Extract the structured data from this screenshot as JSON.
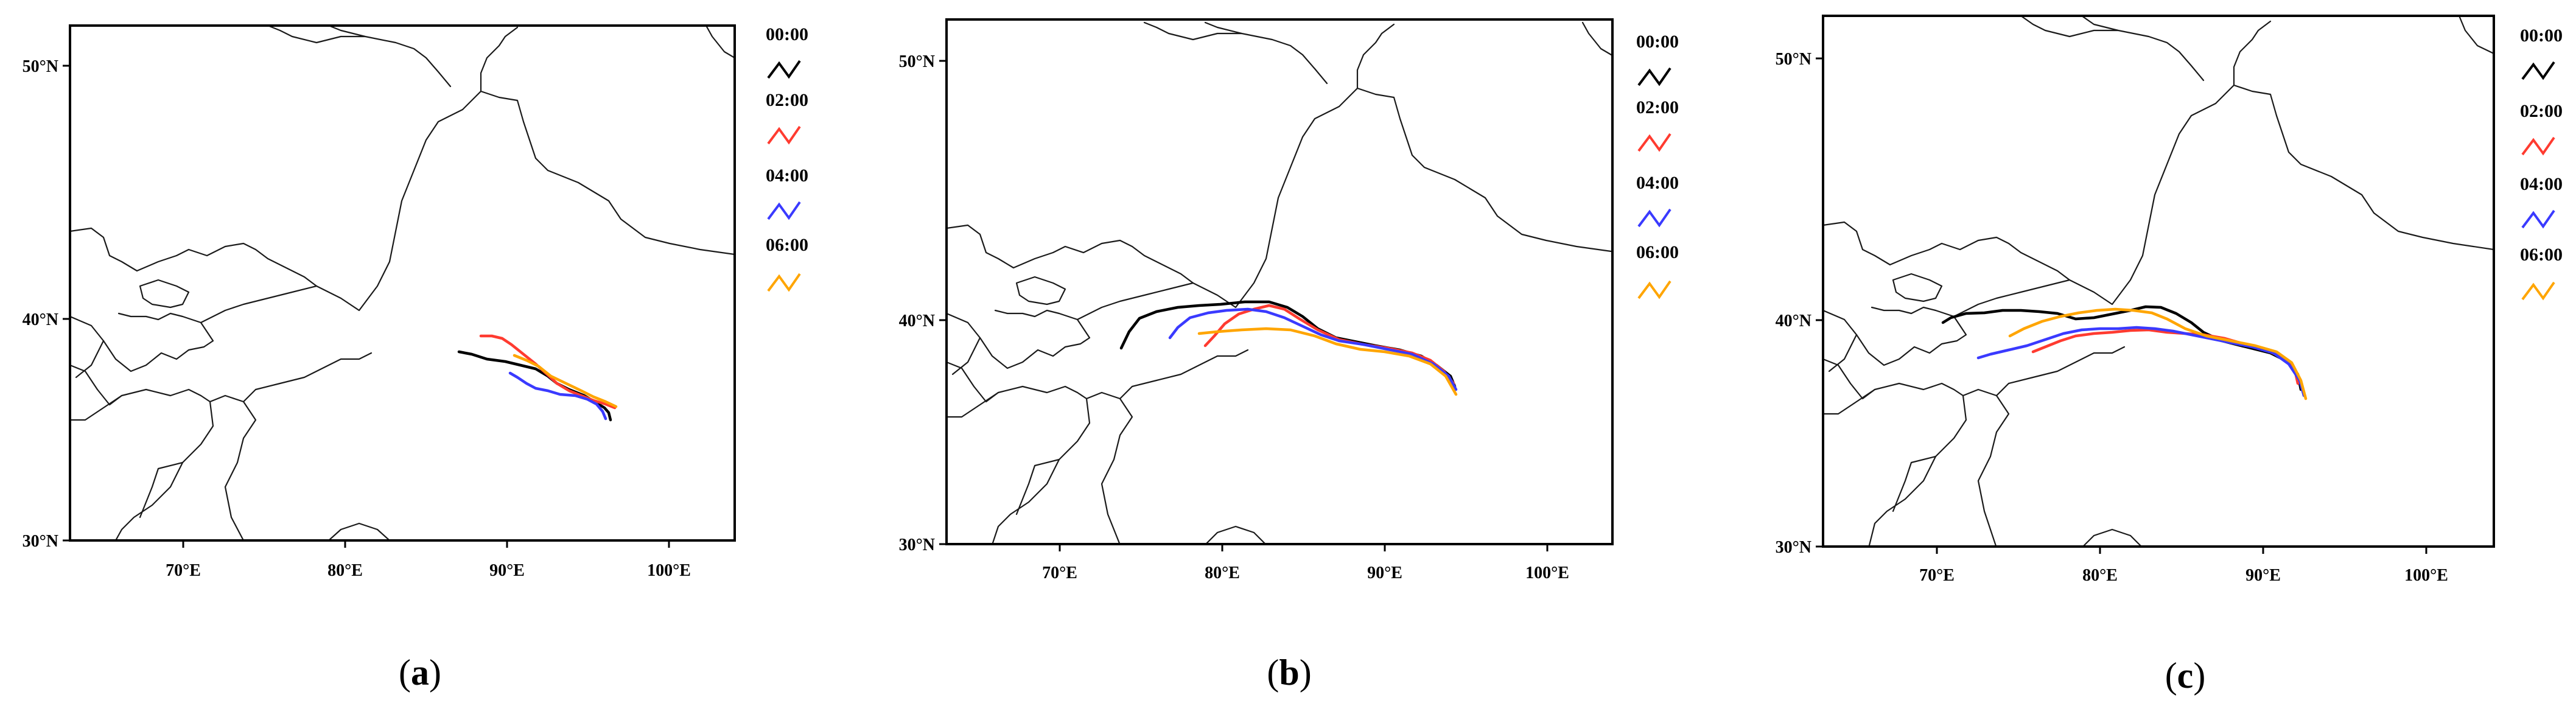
{
  "figure": {
    "panels": [
      {
        "id": "a",
        "caption_open": "(",
        "caption_letter": "a",
        "caption_close": ")",
        "x_ticks": [
          "70°E",
          "80°E",
          "90°E",
          "100°E"
        ],
        "y_ticks": [
          "50°N",
          "40°N",
          "30°N"
        ]
      },
      {
        "id": "b",
        "caption_open": "(",
        "caption_letter": "b",
        "caption_close": ")",
        "x_ticks": [
          "70°E",
          "80°E",
          "90°E",
          "100°E"
        ],
        "y_ticks": [
          "50°N",
          "40°N",
          "30°N"
        ]
      },
      {
        "id": "c",
        "caption_open": "(",
        "caption_letter": "c",
        "caption_close": ")",
        "x_ticks": [
          "70°E",
          "80°E",
          "90°E",
          "100°E"
        ],
        "y_ticks": [
          "50°N",
          "40°N",
          "30°N"
        ]
      }
    ],
    "legend": [
      {
        "label": "00:00",
        "color": "#000000"
      },
      {
        "label": "02:00",
        "color": "#ff3b30"
      },
      {
        "label": "04:00",
        "color": "#3a3aff"
      },
      {
        "label": "06:00",
        "color": "#ffa500"
      }
    ]
  }
}
